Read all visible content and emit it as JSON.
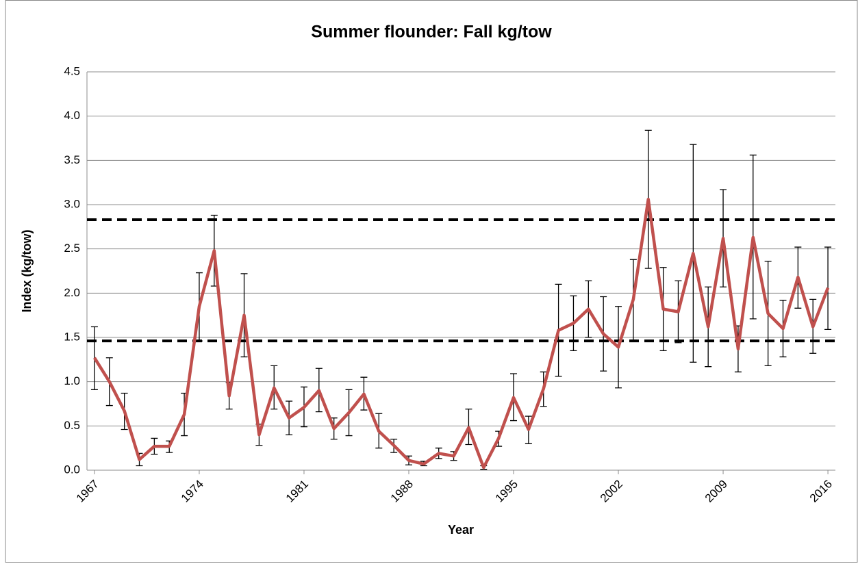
{
  "chart_data": {
    "type": "line",
    "title": "Summer flounder: Fall kg/tow",
    "x_label": "Year",
    "y_label": "Index (kg/tow)",
    "x": [
      1967,
      1968,
      1969,
      1970,
      1971,
      1972,
      1973,
      1974,
      1975,
      1976,
      1977,
      1978,
      1979,
      1980,
      1981,
      1982,
      1983,
      1984,
      1985,
      1986,
      1987,
      1988,
      1989,
      1990,
      1991,
      1992,
      1993,
      1994,
      1995,
      1996,
      1997,
      1998,
      1999,
      2000,
      2001,
      2002,
      2003,
      2004,
      2005,
      2006,
      2007,
      2008,
      2009,
      2010,
      2011,
      2012,
      2013,
      2014,
      2015,
      2016
    ],
    "xlim": [
      1966.5,
      2016.5
    ],
    "xticks": [
      1967,
      1974,
      1981,
      1988,
      1995,
      2002,
      2009,
      2016
    ],
    "ylim": [
      0,
      4.5
    ],
    "yticks": [
      {
        "value": 0,
        "label": "0.0"
      },
      {
        "value": 0.5,
        "label": "0.5"
      },
      {
        "value": 1,
        "label": "1.0"
      },
      {
        "value": 1.5,
        "label": "1.5"
      },
      {
        "value": 2,
        "label": "2.0"
      },
      {
        "value": 2.5,
        "label": "2.5"
      },
      {
        "value": 3,
        "label": "3.0"
      },
      {
        "value": 3.5,
        "label": "3.5"
      },
      {
        "value": 4,
        "label": "4.0"
      },
      {
        "value": 4.5,
        "label": "4.5"
      }
    ],
    "grid": true,
    "series": [
      {
        "color": "#c0504d",
        "values": [
          1.27,
          1.0,
          0.67,
          0.12,
          0.27,
          0.27,
          0.63,
          1.85,
          2.48,
          0.84,
          1.75,
          0.4,
          0.93,
          0.59,
          0.71,
          0.9,
          0.47,
          0.65,
          0.86,
          0.44,
          0.28,
          0.11,
          0.07,
          0.19,
          0.16,
          0.48,
          0.03,
          0.36,
          0.82,
          0.46,
          0.92,
          1.58,
          1.66,
          1.82,
          1.54,
          1.39,
          1.93,
          3.06,
          1.82,
          1.79,
          2.45,
          1.62,
          2.62,
          1.37,
          2.63,
          1.77,
          1.6,
          2.18,
          1.62,
          2.06
        ],
        "lower": [
          0.91,
          0.73,
          0.46,
          0.05,
          0.18,
          0.2,
          0.39,
          1.46,
          2.08,
          0.69,
          1.28,
          0.28,
          0.69,
          0.4,
          0.49,
          0.66,
          0.35,
          0.39,
          0.68,
          0.25,
          0.2,
          0.06,
          0.05,
          0.13,
          0.11,
          0.29,
          0.01,
          0.27,
          0.56,
          0.3,
          0.72,
          1.06,
          1.35,
          1.5,
          1.12,
          0.93,
          1.47,
          2.28,
          1.35,
          1.44,
          1.22,
          1.17,
          2.07,
          1.11,
          1.71,
          1.18,
          1.28,
          1.83,
          1.32,
          1.59
        ],
        "upper": [
          1.62,
          1.27,
          0.87,
          0.19,
          0.36,
          0.33,
          0.87,
          2.23,
          2.88,
          0.99,
          2.22,
          0.52,
          1.18,
          0.78,
          0.94,
          1.15,
          0.59,
          0.91,
          1.05,
          0.64,
          0.35,
          0.16,
          0.1,
          0.25,
          0.21,
          0.69,
          0.05,
          0.44,
          1.09,
          0.61,
          1.11,
          2.1,
          1.97,
          2.14,
          1.96,
          1.85,
          2.38,
          3.84,
          2.29,
          2.14,
          3.68,
          2.07,
          3.17,
          1.63,
          3.56,
          2.36,
          1.92,
          2.52,
          1.93,
          2.52
        ]
      }
    ],
    "reference_lines": [
      {
        "value": 2.83,
        "color": "#000000"
      },
      {
        "value": 1.46,
        "color": "#000000"
      }
    ]
  }
}
